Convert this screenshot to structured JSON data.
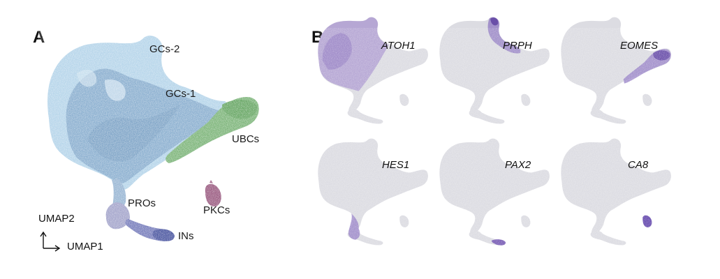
{
  "panels": {
    "a": "A",
    "b": "B"
  },
  "clusters": [
    {
      "key": "gcs2",
      "label": "GCs-2",
      "color": "#b6d5ea"
    },
    {
      "key": "gcs1",
      "label": "GCs-1",
      "color": "#86aacb"
    },
    {
      "key": "ubcs",
      "label": "UBCs",
      "color": "#7fb67c"
    },
    {
      "key": "pros",
      "label": "PROs",
      "color": "#a5a6cc"
    },
    {
      "key": "ins",
      "label": "INs",
      "color": "#5a62a8"
    },
    {
      "key": "pkcs",
      "label": "PKCs",
      "color": "#9c5e83"
    }
  ],
  "axes": {
    "y": "UMAP2",
    "x": "UMAP1"
  },
  "genes": [
    "ATOH1",
    "PRPH",
    "EOMES",
    "HES1",
    "PAX2",
    "CA8"
  ],
  "colors": {
    "gray": "#dcdce2",
    "expression": "#7d5fb0"
  }
}
